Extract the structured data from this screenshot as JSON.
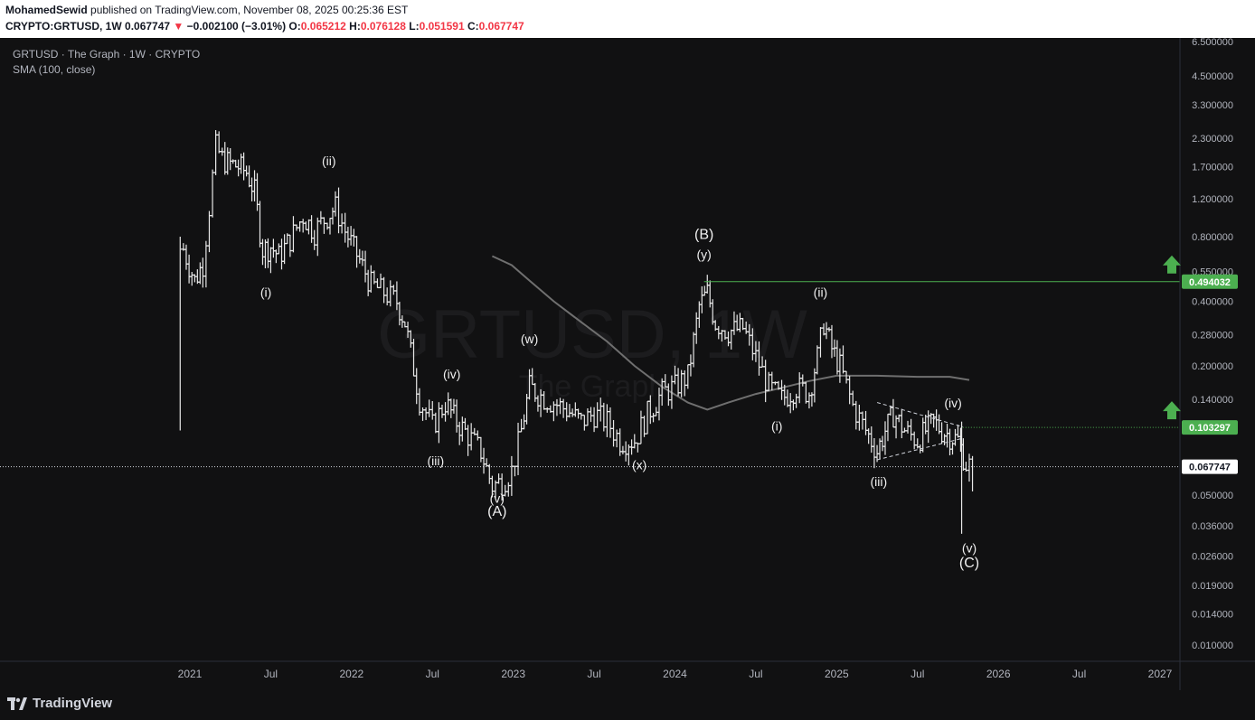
{
  "header": {
    "author": "MohamedSewid",
    "published_text": "published on TradingView.com, November 08, 2025 00:25:36 EST",
    "symbol": "CRYPTO:GRTUSD, 1W",
    "last_price": "0.067747",
    "change": "−0.002100 (−3.01%)",
    "o_label": "O:",
    "o_value": "0.065212",
    "h_label": "H:",
    "h_value": "0.076128",
    "l_label": "L:",
    "l_value": "0.051591",
    "c_label": "C:",
    "c_value": "0.067747"
  },
  "legend": {
    "title": "GRTUSD · The Graph · 1W · CRYPTO",
    "indicator": "SMA (100, close)"
  },
  "watermark": {
    "symbol": "GRTUSD, 1W",
    "name": "The Graph"
  },
  "footer": {
    "brand": "TradingView"
  },
  "colors": {
    "background": "#111112",
    "candle": "#e8e8e8",
    "sma": "#6f6f6f",
    "target_green": "#4caf50",
    "axis_text": "#b2b5be"
  },
  "chart_data": {
    "type": "line",
    "scale": "log",
    "title": "GRTUSD · The Graph · 1W · CRYPTO",
    "x_ticks": [
      "2021",
      "Jul",
      "2022",
      "Jul",
      "2023",
      "Jul",
      "2024",
      "Jul",
      "2025",
      "Jul",
      "2026",
      "Jul",
      "2027"
    ],
    "y_ticks": [
      "6.500000",
      "4.500000",
      "3.300000",
      "2.300000",
      "1.700000",
      "1.200000",
      "0.800000",
      "0.550000",
      "0.400000",
      "0.280000",
      "0.200000",
      "0.140000",
      "0.100000",
      "0.070000",
      "0.050000",
      "0.036000",
      "0.026000",
      "0.019000",
      "0.014000",
      "0.010000"
    ],
    "y_tick_values": [
      6.5,
      4.5,
      3.3,
      2.3,
      1.7,
      1.2,
      0.8,
      0.55,
      0.4,
      0.28,
      0.2,
      0.14,
      0.1,
      0.07,
      0.05,
      0.036,
      0.026,
      0.019,
      0.014,
      0.01
    ],
    "y_range": [
      0.0085,
      6.8
    ],
    "x_range": [
      2020.5,
      2027.5
    ],
    "series": [
      {
        "name": "GRTUSD",
        "style": "ohlc-bars",
        "points": [
          [
            2020.96,
            0.7
          ],
          [
            2021.03,
            0.5
          ],
          [
            2021.08,
            0.6
          ],
          [
            2021.12,
            1.1
          ],
          [
            2021.16,
            2.1
          ],
          [
            2021.2,
            1.85
          ],
          [
            2021.25,
            1.75
          ],
          [
            2021.3,
            1.7
          ],
          [
            2021.35,
            1.6
          ],
          [
            2021.4,
            1.3
          ],
          [
            2021.45,
            0.7
          ],
          [
            2021.5,
            0.72
          ],
          [
            2021.55,
            0.65
          ],
          [
            2021.62,
            0.78
          ],
          [
            2021.7,
            1.0
          ],
          [
            2021.77,
            0.85
          ],
          [
            2021.85,
            1.0
          ],
          [
            2021.9,
            1.1
          ],
          [
            2021.96,
            0.85
          ],
          [
            2022.05,
            0.62
          ],
          [
            2022.12,
            0.48
          ],
          [
            2022.2,
            0.44
          ],
          [
            2022.28,
            0.4
          ],
          [
            2022.33,
            0.32
          ],
          [
            2022.42,
            0.14
          ],
          [
            2022.5,
            0.105
          ],
          [
            2022.58,
            0.135
          ],
          [
            2022.65,
            0.11
          ],
          [
            2022.72,
            0.095
          ],
          [
            2022.8,
            0.08
          ],
          [
            2022.87,
            0.055
          ],
          [
            2022.93,
            0.058
          ],
          [
            2022.99,
            0.065
          ],
          [
            2023.05,
            0.1
          ],
          [
            2023.1,
            0.16
          ],
          [
            2023.17,
            0.145
          ],
          [
            2023.25,
            0.135
          ],
          [
            2023.33,
            0.125
          ],
          [
            2023.42,
            0.11
          ],
          [
            2023.5,
            0.12
          ],
          [
            2023.58,
            0.11
          ],
          [
            2023.66,
            0.09
          ],
          [
            2023.75,
            0.09
          ],
          [
            2023.83,
            0.12
          ],
          [
            2023.92,
            0.15
          ],
          [
            2024.0,
            0.16
          ],
          [
            2024.08,
            0.18
          ],
          [
            2024.15,
            0.38
          ],
          [
            2024.2,
            0.44
          ],
          [
            2024.25,
            0.32
          ],
          [
            2024.33,
            0.29
          ],
          [
            2024.42,
            0.3
          ],
          [
            2024.5,
            0.22
          ],
          [
            2024.58,
            0.16
          ],
          [
            2024.66,
            0.14
          ],
          [
            2024.75,
            0.16
          ],
          [
            2024.83,
            0.15
          ],
          [
            2024.88,
            0.22
          ],
          [
            2024.92,
            0.32
          ],
          [
            2024.97,
            0.24
          ],
          [
            2025.02,
            0.2
          ],
          [
            2025.1,
            0.13
          ],
          [
            2025.18,
            0.1
          ],
          [
            2025.25,
            0.08
          ],
          [
            2025.3,
            0.1
          ],
          [
            2025.35,
            0.12
          ],
          [
            2025.42,
            0.1
          ],
          [
            2025.5,
            0.09
          ],
          [
            2025.55,
            0.1
          ],
          [
            2025.6,
            0.11
          ],
          [
            2025.65,
            0.1
          ],
          [
            2025.7,
            0.095
          ],
          [
            2025.75,
            0.09
          ],
          [
            2025.8,
            0.07
          ],
          [
            2025.84,
            0.068
          ]
        ]
      },
      {
        "name": "SMA (100, close)",
        "style": "line",
        "points": [
          [
            2022.87,
            0.65
          ],
          [
            2022.99,
            0.59
          ],
          [
            2023.1,
            0.5
          ],
          [
            2023.25,
            0.4
          ],
          [
            2023.42,
            0.32
          ],
          [
            2023.58,
            0.26
          ],
          [
            2023.75,
            0.2
          ],
          [
            2023.92,
            0.16
          ],
          [
            2024.08,
            0.135
          ],
          [
            2024.2,
            0.125
          ],
          [
            2024.33,
            0.135
          ],
          [
            2024.5,
            0.148
          ],
          [
            2024.66,
            0.158
          ],
          [
            2024.83,
            0.17
          ],
          [
            2025.0,
            0.18
          ],
          [
            2025.25,
            0.18
          ],
          [
            2025.5,
            0.178
          ],
          [
            2025.7,
            0.178
          ],
          [
            2025.82,
            0.172
          ]
        ]
      }
    ],
    "price_labels": [
      {
        "value": 0.494032,
        "text": "0.494032",
        "kind": "target"
      },
      {
        "value": 0.103297,
        "text": "0.103297",
        "kind": "target"
      },
      {
        "value": 0.067747,
        "text": "0.067747",
        "kind": "last"
      }
    ],
    "wave_labels": [
      {
        "text": "(i)",
        "x": 2021.47,
        "y": 0.42
      },
      {
        "text": "(ii)",
        "x": 2021.86,
        "y": 1.72
      },
      {
        "text": "(iii)",
        "x": 2022.52,
        "y": 0.069
      },
      {
        "text": "(iv)",
        "x": 2022.62,
        "y": 0.175
      },
      {
        "text": "(v)",
        "x": 2022.9,
        "y": 0.046
      },
      {
        "text": "(A)",
        "x": 2022.9,
        "y": 0.04
      },
      {
        "text": "(w)",
        "x": 2023.1,
        "y": 0.255
      },
      {
        "text": "(x)",
        "x": 2023.78,
        "y": 0.066
      },
      {
        "text": "(B)",
        "x": 2024.18,
        "y": 0.78
      },
      {
        "text": "(y)",
        "x": 2024.18,
        "y": 0.63
      },
      {
        "text": "(i)",
        "x": 2024.63,
        "y": 0.1
      },
      {
        "text": "(ii)",
        "x": 2024.9,
        "y": 0.42
      },
      {
        "text": "(iii)",
        "x": 2025.26,
        "y": 0.055
      },
      {
        "text": "(iv)",
        "x": 2025.72,
        "y": 0.128
      },
      {
        "text": "(v)",
        "x": 2025.82,
        "y": 0.027
      },
      {
        "text": "(C)",
        "x": 2025.82,
        "y": 0.023
      }
    ],
    "grid": false,
    "legend_position": "top-left"
  }
}
